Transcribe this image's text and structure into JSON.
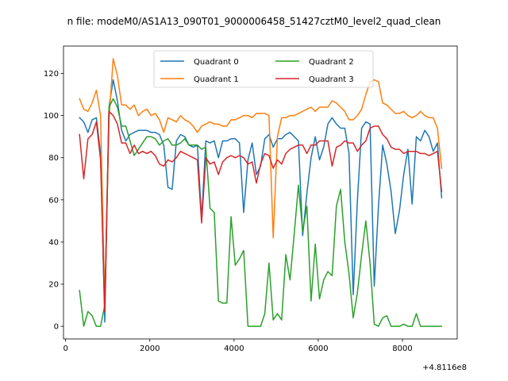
{
  "chart_data": {
    "type": "line",
    "title": "n file: modeM0/AS1A13_090T01_9000006458_51427cztM0_level2_quad_clean",
    "xlabel": "",
    "ylabel": "",
    "x_offset_label": "+4.8116e8",
    "xlim": [
      -50,
      9300
    ],
    "ylim": [
      -6,
      133
    ],
    "xticks": [
      0,
      2000,
      4000,
      6000,
      8000
    ],
    "yticks": [
      0,
      20,
      40,
      60,
      80,
      100,
      120
    ],
    "grid": false,
    "legend": {
      "placement": "upper center",
      "ncol": 2
    },
    "x": [
      330,
      430,
      530,
      630,
      730,
      830,
      930,
      1030,
      1130,
      1230,
      1330,
      1430,
      1530,
      1630,
      1730,
      1830,
      1930,
      2030,
      2130,
      2230,
      2330,
      2430,
      2530,
      2630,
      2730,
      2830,
      2930,
      3030,
      3130,
      3230,
      3330,
      3430,
      3530,
      3630,
      3730,
      3830,
      3930,
      4030,
      4130,
      4230,
      4330,
      4430,
      4530,
      4630,
      4730,
      4830,
      4930,
      5030,
      5130,
      5230,
      5330,
      5430,
      5530,
      5630,
      5730,
      5830,
      5930,
      6030,
      6130,
      6230,
      6330,
      6430,
      6530,
      6630,
      6730,
      6830,
      6930,
      7030,
      7130,
      7230,
      7330,
      7430,
      7530,
      7630,
      7730,
      7830,
      7930,
      8030,
      8130,
      8230,
      8330,
      8430,
      8530,
      8630,
      8730,
      8830,
      8930
    ],
    "series": [
      {
        "name": "Quadrant 0",
        "color": "#1f77b4",
        "values": [
          99,
          97,
          92,
          98,
          99,
          82,
          2,
          104,
          117,
          107,
          93,
          88,
          91,
          92,
          93,
          93,
          93,
          92,
          92,
          91,
          86,
          66,
          65,
          88,
          91,
          90,
          86,
          85,
          86,
          51,
          88,
          87,
          88,
          80,
          88,
          88,
          89,
          89,
          87,
          54,
          79,
          87,
          72,
          76,
          89,
          91,
          85,
          89,
          89,
          91,
          92,
          90,
          88,
          43,
          63,
          80,
          90,
          79,
          85,
          96,
          99,
          96,
          94,
          94,
          82,
          15,
          60,
          94,
          97,
          96,
          19,
          57,
          86,
          77,
          64,
          44,
          55,
          72,
          84,
          58,
          90,
          88,
          93,
          90,
          83,
          87,
          61
        ]
      },
      {
        "name": "Quadrant 1",
        "color": "#ff7f0e",
        "values": [
          108,
          103,
          102,
          106,
          112,
          100,
          10,
          98,
          127,
          119,
          105,
          105,
          103,
          105,
          100,
          102,
          103,
          100,
          101,
          98,
          92,
          99,
          98,
          97,
          100,
          98,
          97,
          95,
          92,
          95,
          96,
          97,
          96,
          96,
          95,
          95,
          98,
          98,
          99,
          100,
          100,
          99,
          101,
          101,
          101,
          100,
          42,
          90,
          99,
          99,
          100,
          100,
          101,
          102,
          103,
          104,
          102,
          104,
          104,
          104,
          107,
          106,
          104,
          102,
          98,
          98,
          100,
          103,
          110,
          116,
          117,
          116,
          106,
          105,
          103,
          101,
          101,
          102,
          100,
          99,
          100,
          102,
          100,
          99,
          99,
          94,
          75
        ]
      },
      {
        "name": "Quadrant 2",
        "color": "#2ca02c",
        "values": [
          17,
          0,
          7,
          5,
          0,
          0,
          10,
          104,
          108,
          104,
          95,
          95,
          88,
          81,
          84,
          87,
          90,
          90,
          89,
          86,
          88,
          89,
          86,
          86,
          87,
          89,
          86,
          86,
          86,
          84,
          85,
          56,
          54,
          12,
          11,
          11,
          52,
          29,
          32,
          36,
          0,
          0,
          0,
          0,
          6,
          30,
          3,
          6,
          3,
          34,
          22,
          44,
          67,
          45,
          57,
          12,
          39,
          13,
          22,
          26,
          24,
          57,
          65,
          40,
          25,
          4,
          16,
          34,
          50,
          30,
          1,
          0,
          4,
          5,
          0,
          0,
          0,
          1,
          0,
          0,
          6,
          0,
          0,
          0,
          0,
          0,
          0
        ]
      },
      {
        "name": "Quadrant 3",
        "color": "#d62728",
        "values": [
          91,
          70,
          89,
          91,
          97,
          79,
          7,
          102,
          100,
          96,
          87,
          87,
          82,
          86,
          82,
          83,
          82,
          83,
          81,
          77,
          76,
          79,
          78,
          80,
          83,
          82,
          81,
          80,
          79,
          49,
          80,
          77,
          78,
          72,
          78,
          80,
          81,
          80,
          81,
          80,
          77,
          78,
          68,
          77,
          82,
          81,
          75,
          79,
          77,
          82,
          84,
          85,
          86,
          86,
          82,
          86,
          86,
          88,
          88,
          88,
          76,
          85,
          86,
          88,
          87,
          87,
          83,
          86,
          88,
          94,
          95,
          95,
          91,
          89,
          85,
          84,
          84,
          82,
          83,
          83,
          83,
          82,
          82,
          81,
          82,
          83,
          64
        ]
      }
    ]
  }
}
